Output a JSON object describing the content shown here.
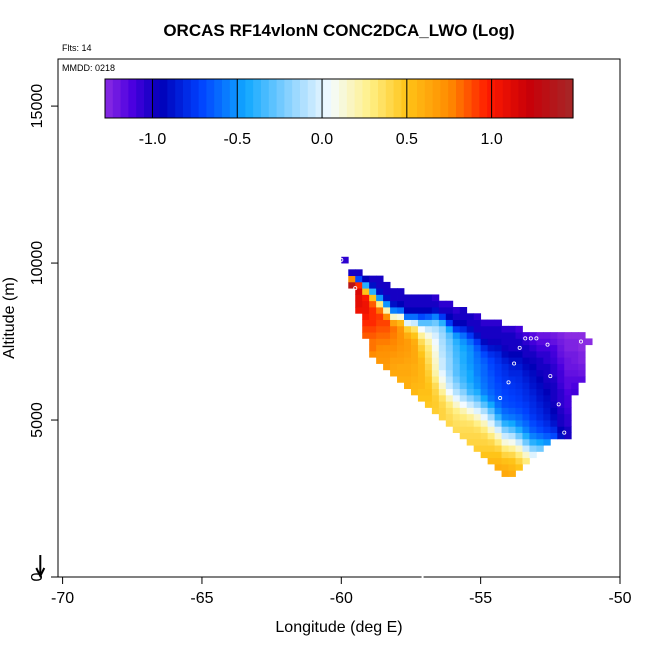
{
  "chart_data": {
    "type": "heatmap",
    "title": "ORCAS RF14vlonN CONC2DCA_LWO (Log)",
    "info_flights": "Flts: 14",
    "info_date": "MMDD: 0218",
    "xlabel": "Longitude (deg E)",
    "ylabel": "Altitude (m)",
    "xlim": [
      -71,
      -50
    ],
    "ylim": [
      0,
      16500
    ],
    "xticks": [
      -70,
      -65,
      -60,
      -55,
      -50
    ],
    "xtick_labels": [
      "-70",
      "-65",
      "-60",
      "-55",
      "-50"
    ],
    "yticks": [
      0,
      5000,
      10000,
      15000
    ],
    "ytick_labels": [
      "0",
      "5000",
      "10000",
      "15000"
    ],
    "colorbar": {
      "range": [
        -1.28,
        1.48
      ],
      "ticks": [
        -1.0,
        -0.5,
        0.0,
        0.5,
        1.0
      ],
      "tick_labels": [
        "-1.0",
        "-0.5",
        "0.0",
        "0.5",
        "1.0"
      ],
      "stops": [
        {
          "v": -1.28,
          "c": "#8a2be2"
        },
        {
          "v": -1.12,
          "c": "#4b00e0"
        },
        {
          "v": -0.95,
          "c": "#0000b8"
        },
        {
          "v": -0.72,
          "c": "#0040ff"
        },
        {
          "v": -0.45,
          "c": "#10a8ff"
        },
        {
          "v": -0.18,
          "c": "#90d4ff"
        },
        {
          "v": 0.05,
          "c": "#f4fbff"
        },
        {
          "v": 0.28,
          "c": "#fff088"
        },
        {
          "v": 0.5,
          "c": "#ffc418"
        },
        {
          "v": 0.75,
          "c": "#ff8c00"
        },
        {
          "v": 0.98,
          "c": "#ff1a00"
        },
        {
          "v": 1.22,
          "c": "#c80008"
        },
        {
          "v": 1.48,
          "c": "#a52828"
        }
      ]
    },
    "cell_size": {
      "dlon": 0.25,
      "dalt": 200
    },
    "columns": [
      {
        "lon": -60.0,
        "zmin": 10000,
        "zmax": 10200,
        "v": [
          -1.05
        ]
      },
      {
        "lon": -59.75,
        "zmin": 9200,
        "zmax": 9800,
        "v": [
          1.35,
          0.75,
          -1.0
        ]
      },
      {
        "lon": -59.5,
        "zmin": 8400,
        "zmax": 9800,
        "v": [
          1.05,
          1.1,
          1.1,
          1.15,
          0.95,
          -0.7,
          -1.0
        ]
      },
      {
        "lon": -59.25,
        "zmin": 7600,
        "zmax": 9600,
        "v": [
          0.85,
          0.9,
          0.95,
          1.0,
          1.05,
          1.05,
          1.0,
          0.5,
          -0.4,
          -0.95
        ]
      },
      {
        "lon": -59.0,
        "zmin": 7000,
        "zmax": 9600,
        "v": [
          0.75,
          0.8,
          0.8,
          0.85,
          0.9,
          0.95,
          0.95,
          0.95,
          0.85,
          0.5,
          -0.4,
          -0.9,
          -1.0
        ]
      },
      {
        "lon": -58.75,
        "zmin": 6800,
        "zmax": 9600,
        "v": [
          0.7,
          0.72,
          0.75,
          0.78,
          0.82,
          0.86,
          0.9,
          0.92,
          0.8,
          0.3,
          -0.5,
          -0.9,
          -1.0,
          -1.0
        ]
      },
      {
        "lon": -58.5,
        "zmin": 6600,
        "zmax": 9400,
        "v": [
          0.68,
          0.7,
          0.72,
          0.74,
          0.78,
          0.82,
          0.86,
          0.9,
          0.75,
          0.2,
          -0.5,
          -0.9,
          -1.0,
          -1.0
        ]
      },
      {
        "lon": -58.25,
        "zmin": 6400,
        "zmax": 9200,
        "v": [
          0.62,
          0.64,
          0.66,
          0.7,
          0.74,
          0.76,
          0.78,
          0.8,
          0.65,
          0.15,
          -0.55,
          -0.9,
          -1.0,
          -1.0
        ]
      },
      {
        "lon": -58.0,
        "zmin": 6200,
        "zmax": 9200,
        "v": [
          0.6,
          0.62,
          0.62,
          0.66,
          0.68,
          0.7,
          0.72,
          0.72,
          0.7,
          0.55,
          0.1,
          -0.6,
          -0.95,
          -1.0,
          -1.0
        ]
      },
      {
        "lon": -57.75,
        "zmin": 6000,
        "zmax": 9000,
        "v": [
          0.6,
          0.6,
          0.62,
          0.62,
          0.64,
          0.66,
          0.68,
          0.68,
          0.6,
          0.45,
          0.0,
          -0.6,
          -0.95,
          -1.0,
          -1.0
        ]
      },
      {
        "lon": -57.5,
        "zmin": 5800,
        "zmax": 9000,
        "v": [
          0.55,
          0.56,
          0.58,
          0.6,
          0.6,
          0.62,
          0.62,
          0.62,
          0.6,
          0.5,
          0.35,
          -0.05,
          -0.6,
          -0.95,
          -1.0,
          -1.0
        ]
      },
      {
        "lon": -57.25,
        "zmin": 5600,
        "zmax": 9000,
        "v": [
          0.5,
          0.52,
          0.55,
          0.56,
          0.56,
          0.56,
          0.55,
          0.5,
          0.45,
          0.38,
          0.25,
          0.05,
          -0.3,
          -0.7,
          -0.95,
          -1.0,
          -1.0
        ]
      },
      {
        "lon": -57.0,
        "zmin": 5400,
        "zmax": 9000,
        "v": [
          0.48,
          0.5,
          0.52,
          0.5,
          0.48,
          0.45,
          0.42,
          0.38,
          0.34,
          0.3,
          0.22,
          0.1,
          -0.05,
          -0.3,
          -0.65,
          -0.95,
          -1.0,
          -1.0
        ]
      },
      {
        "lon": -56.75,
        "zmin": 5200,
        "zmax": 9000,
        "v": [
          0.45,
          0.46,
          0.45,
          0.42,
          0.38,
          0.3,
          0.22,
          0.18,
          0.15,
          0.12,
          0.08,
          0.04,
          -0.02,
          -0.1,
          -0.25,
          -0.55,
          -0.9,
          -1.0,
          -1.05
        ]
      },
      {
        "lon": -56.5,
        "zmin": 5000,
        "zmax": 8800,
        "v": [
          0.42,
          0.42,
          0.4,
          0.35,
          0.25,
          0.15,
          0.08,
          0.02,
          -0.05,
          -0.05,
          -0.08,
          -0.1,
          -0.12,
          -0.15,
          -0.2,
          -0.4,
          -0.75,
          -1.0,
          -1.05
        ]
      },
      {
        "lon": -56.25,
        "zmin": 4800,
        "zmax": 8800,
        "v": [
          0.4,
          0.38,
          0.35,
          0.3,
          0.18,
          0.05,
          -0.05,
          -0.1,
          -0.15,
          -0.18,
          -0.18,
          -0.2,
          -0.22,
          -0.25,
          -0.3,
          -0.45,
          -0.75,
          -0.95,
          -1.0,
          -1.05
        ]
      },
      {
        "lon": -56.0,
        "zmin": 4600,
        "zmax": 8600,
        "v": [
          0.38,
          0.36,
          0.33,
          0.28,
          0.15,
          0.02,
          -0.1,
          -0.18,
          -0.25,
          -0.3,
          -0.3,
          -0.32,
          -0.34,
          -0.36,
          -0.4,
          -0.5,
          -0.75,
          -0.95,
          -1.0,
          -1.05
        ]
      },
      {
        "lon": -55.75,
        "zmin": 4400,
        "zmax": 8600,
        "v": [
          0.4,
          0.38,
          0.35,
          0.3,
          0.2,
          0.05,
          -0.1,
          -0.2,
          -0.3,
          -0.35,
          -0.38,
          -0.4,
          -0.42,
          -0.42,
          -0.45,
          -0.5,
          -0.6,
          -0.8,
          -0.95,
          -1.0,
          -1.0
        ]
      },
      {
        "lon": -55.5,
        "zmin": 4200,
        "zmax": 8400,
        "v": [
          0.42,
          0.4,
          0.38,
          0.34,
          0.25,
          0.1,
          -0.05,
          -0.2,
          -0.35,
          -0.4,
          -0.45,
          -0.45,
          -0.48,
          -0.5,
          -0.5,
          -0.52,
          -0.6,
          -0.75,
          -0.9,
          -1.0,
          -1.0
        ]
      },
      {
        "lon": -55.25,
        "zmin": 4000,
        "zmax": 8400,
        "v": [
          0.45,
          0.42,
          0.4,
          0.36,
          0.28,
          0.15,
          0.0,
          -0.15,
          -0.3,
          -0.42,
          -0.5,
          -0.52,
          -0.55,
          -0.56,
          -0.58,
          -0.6,
          -0.65,
          -0.75,
          -0.9,
          -1.0,
          -1.0,
          -1.05
        ]
      },
      {
        "lon": -55.0,
        "zmin": 3800,
        "zmax": 8200,
        "v": [
          0.5,
          0.45,
          0.42,
          0.38,
          0.3,
          0.18,
          0.02,
          -0.12,
          -0.3,
          -0.45,
          -0.55,
          -0.58,
          -0.6,
          -0.62,
          -0.62,
          -0.65,
          -0.7,
          -0.8,
          -0.92,
          -1.0,
          -1.0,
          -1.05
        ]
      },
      {
        "lon": -54.75,
        "zmin": 3600,
        "zmax": 8200,
        "v": [
          0.55,
          0.5,
          0.45,
          0.4,
          0.3,
          0.15,
          0.0,
          -0.15,
          -0.3,
          -0.45,
          -0.58,
          -0.62,
          -0.65,
          -0.66,
          -0.68,
          -0.7,
          -0.72,
          -0.78,
          -0.88,
          -0.98,
          -1.0,
          -1.0,
          -1.05
        ]
      },
      {
        "lon": -54.5,
        "zmin": 3400,
        "zmax": 8200,
        "v": [
          0.6,
          0.55,
          0.5,
          0.42,
          0.3,
          0.15,
          -0.02,
          -0.2,
          -0.38,
          -0.52,
          -0.6,
          -0.65,
          -0.68,
          -0.7,
          -0.72,
          -0.74,
          -0.75,
          -0.78,
          -0.82,
          -0.9,
          -0.98,
          -1.0,
          -1.0,
          -1.05
        ]
      },
      {
        "lon": -54.25,
        "zmin": 3200,
        "zmax": 8000,
        "v": [
          0.62,
          0.58,
          0.52,
          0.42,
          0.3,
          0.12,
          -0.05,
          -0.22,
          -0.4,
          -0.55,
          -0.62,
          -0.68,
          -0.7,
          -0.72,
          -0.74,
          -0.76,
          -0.78,
          -0.8,
          -0.85,
          -0.92,
          -0.98,
          -1.0,
          -1.0,
          -1.05
        ]
      },
      {
        "lon": -54.0,
        "zmin": 3200,
        "zmax": 8000,
        "v": [
          0.6,
          0.55,
          0.5,
          0.4,
          0.25,
          0.08,
          -0.1,
          -0.3,
          -0.45,
          -0.58,
          -0.65,
          -0.7,
          -0.72,
          -0.74,
          -0.76,
          -0.78,
          -0.82,
          -0.85,
          -0.9,
          -0.95,
          -1.0,
          -1.0,
          -1.0,
          -1.05
        ]
      },
      {
        "lon": -53.75,
        "zmin": 3400,
        "zmax": 8000,
        "v": [
          0.5,
          0.42,
          0.3,
          0.15,
          -0.05,
          -0.25,
          -0.42,
          -0.55,
          -0.62,
          -0.68,
          -0.72,
          -0.74,
          -0.76,
          -0.78,
          -0.8,
          -0.82,
          -0.86,
          -0.9,
          -0.95,
          -1.0,
          -1.0,
          -1.05,
          -1.1
        ]
      },
      {
        "lon": -53.5,
        "zmin": 3600,
        "zmax": 7800,
        "v": [
          0.3,
          0.15,
          -0.05,
          -0.25,
          -0.42,
          -0.55,
          -0.62,
          -0.68,
          -0.72,
          -0.75,
          -0.78,
          -0.8,
          -0.82,
          -0.85,
          -0.88,
          -0.92,
          -0.96,
          -1.0,
          -1.0,
          -1.05,
          -1.1
        ]
      },
      {
        "lon": -53.25,
        "zmin": 3800,
        "zmax": 7800,
        "v": [
          0.0,
          -0.2,
          -0.4,
          -0.55,
          -0.65,
          -0.7,
          -0.75,
          -0.78,
          -0.8,
          -0.82,
          -0.85,
          -0.88,
          -0.9,
          -0.92,
          -0.95,
          -0.98,
          -1.0,
          -1.05,
          -1.1,
          -1.15
        ]
      },
      {
        "lon": -53.0,
        "zmin": 4000,
        "zmax": 7800,
        "v": [
          -0.25,
          -0.45,
          -0.6,
          -0.7,
          -0.75,
          -0.8,
          -0.82,
          -0.85,
          -0.88,
          -0.9,
          -0.92,
          -0.95,
          -0.98,
          -1.0,
          -1.0,
          -1.05,
          -1.1,
          -1.15,
          -1.2
        ]
      },
      {
        "lon": -52.75,
        "zmin": 4200,
        "zmax": 7800,
        "v": [
          -0.5,
          -0.65,
          -0.75,
          -0.8,
          -0.85,
          -0.88,
          -0.9,
          -0.92,
          -0.95,
          -0.98,
          -1.0,
          -1.0,
          -1.0,
          -1.05,
          -1.05,
          -1.1,
          -1.15,
          -1.2
        ]
      },
      {
        "lon": -52.5,
        "zmin": 4400,
        "zmax": 7800,
        "v": [
          -0.7,
          -0.8,
          -0.88,
          -0.92,
          -0.95,
          -0.98,
          -1.0,
          -1.0,
          -1.0,
          -1.02,
          -1.05,
          -1.05,
          -1.08,
          -1.1,
          -1.12,
          -1.18,
          -1.22
        ]
      },
      {
        "lon": -52.25,
        "zmin": 4400,
        "zmax": 7800,
        "v": [
          -0.9,
          -0.95,
          -1.0,
          -1.0,
          -1.02,
          -1.05,
          -1.05,
          -1.05,
          -1.08,
          -1.1,
          -1.1,
          -1.12,
          -1.15,
          -1.18,
          -1.2,
          -1.22,
          -1.25
        ]
      },
      {
        "lon": -52.0,
        "zmin": 4400,
        "zmax": 7800,
        "v": [
          -1.0,
          -1.0,
          -1.05,
          -1.05,
          -1.08,
          -1.1,
          -1.1,
          -1.12,
          -1.15,
          -1.15,
          -1.18,
          -1.2,
          -1.2,
          -1.22,
          -1.25,
          -1.25,
          -1.28
        ]
      },
      {
        "lon": -51.75,
        "zmin": 5800,
        "zmax": 7800,
        "v": [
          -1.1,
          -1.12,
          -1.15,
          -1.18,
          -1.2,
          -1.22,
          -1.22,
          -1.25,
          -1.25,
          -1.28
        ]
      },
      {
        "lon": -51.5,
        "zmin": 6200,
        "zmax": 7800,
        "v": [
          -1.15,
          -1.2,
          -1.22,
          -1.25,
          -1.25,
          -1.28,
          -1.28,
          -1.28
        ]
      },
      {
        "lon": -51.25,
        "zmin": 7400,
        "zmax": 7600,
        "v": [
          -1.28
        ]
      }
    ],
    "markers": [
      {
        "lon": -60.0,
        "alt": 10100
      },
      {
        "lon": -59.5,
        "alt": 9200
      },
      {
        "lon": -52.5,
        "alt": 6400
      },
      {
        "lon": -52.2,
        "alt": 5500
      },
      {
        "lon": -52.0,
        "alt": 4600
      },
      {
        "lon": -52.6,
        "alt": 7400
      },
      {
        "lon": -53.0,
        "alt": 7600
      },
      {
        "lon": -53.2,
        "alt": 7600
      },
      {
        "lon": -53.4,
        "alt": 7600
      },
      {
        "lon": -53.6,
        "alt": 7300
      },
      {
        "lon": -53.8,
        "alt": 6800
      },
      {
        "lon": -54.0,
        "alt": 6200
      },
      {
        "lon": -54.3,
        "alt": 5700
      },
      {
        "lon": -51.4,
        "alt": 7500
      }
    ],
    "arrow": {
      "lon": -70.8,
      "alt_from": 700,
      "alt_to": 0
    }
  }
}
